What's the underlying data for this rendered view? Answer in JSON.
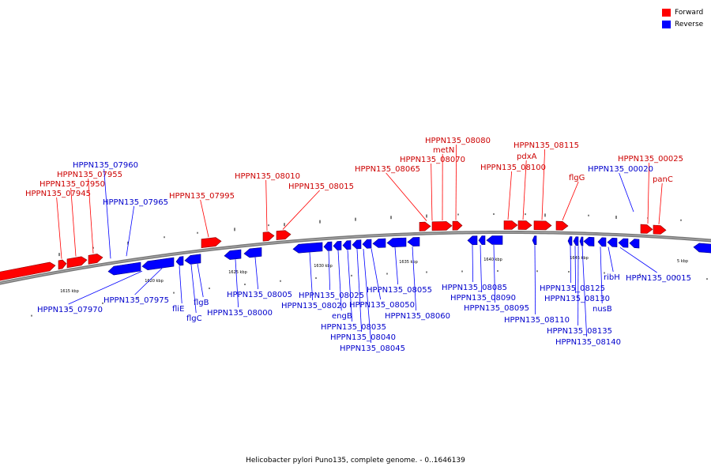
{
  "title": "Helicobacter pylori Puno135, complete genome. - 0..1646139",
  "colors": {
    "forward": "#ff0000",
    "reverse": "#0000ff",
    "forward_label": "#cc0000",
    "reverse_label": "#0000cc",
    "backbone": "#777777"
  },
  "legend": [
    {
      "label": "Forward",
      "color": "#ff0000"
    },
    {
      "label": "Reverse",
      "color": "#0000ff"
    }
  ],
  "scale_labels": [
    "1615 kbp",
    "1620 kbp",
    "1625 kbp",
    "1630 kbp",
    "1635 kbp",
    "1640 kbp",
    "1645 kbp",
    "5 kbp"
  ],
  "forward_genes": [
    "HPPN135_07945",
    "HPPN135_07950",
    "HPPN135_07955",
    "HPPN135_07995",
    "HPPN135_08010",
    "HPPN135_08015",
    "HPPN135_08065",
    "HPPN135_08070",
    "metN",
    "HPPN135_08080",
    "HPPN135_08100",
    "pdxA",
    "HPPN135_08115",
    "flgG",
    "HPPN135_00025",
    "panC"
  ],
  "reverse_genes": [
    "HPPN135_07960",
    "HPPN135_07965",
    "HPPN135_07970",
    "HPPN135_07975",
    "fliE",
    "flgC",
    "flgB",
    "HPPN135_08000",
    "HPPN135_08005",
    "HPPN135_08020",
    "HPPN135_08025",
    "engB",
    "HPPN135_08035",
    "HPPN135_08040",
    "HPPN135_08045",
    "HPPN135_08050",
    "HPPN135_08055",
    "HPPN135_08060",
    "HPPN135_08085",
    "HPPN135_08090",
    "HPPN135_08095",
    "HPPN135_08110",
    "HPPN135_08125",
    "HPPN135_08130",
    "HPPN135_08135",
    "HPPN135_08140",
    "nusB",
    "ribH",
    "HPPN135_00020",
    "HPPN135_00015"
  ]
}
